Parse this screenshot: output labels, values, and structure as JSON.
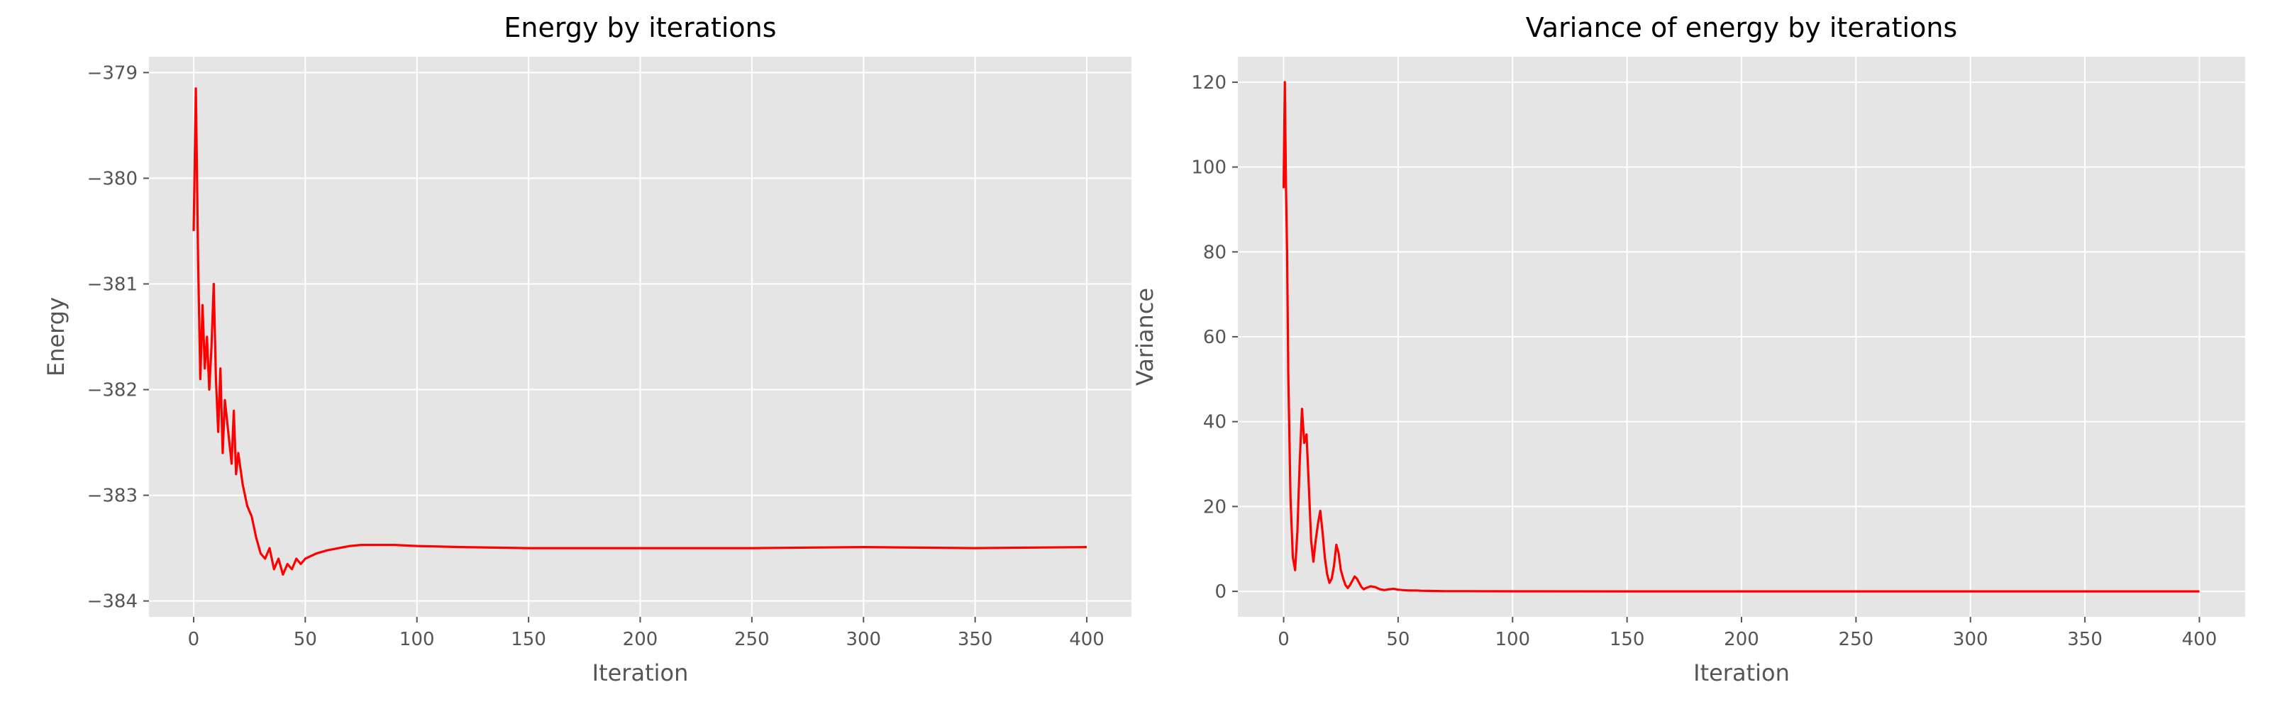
{
  "chart_data": [
    {
      "type": "line",
      "title": "Energy by iterations",
      "xlabel": "Iteration",
      "ylabel": "Energy",
      "xlim": [
        -20,
        420
      ],
      "ylim": [
        -384.15,
        -378.85
      ],
      "xticks": [
        0,
        50,
        100,
        150,
        200,
        250,
        300,
        350,
        400
      ],
      "yticks": [
        -384,
        -383,
        -382,
        -381,
        -380,
        -379
      ],
      "grid": true,
      "series_color": "#ff0000",
      "background": "#e5e5e5",
      "series": [
        {
          "x": [
            0,
            1,
            2,
            3,
            4,
            5,
            6,
            7,
            8,
            9,
            10,
            11,
            12,
            13,
            14,
            15,
            16,
            17,
            18,
            19,
            20,
            22,
            24,
            26,
            28,
            30,
            32,
            34,
            36,
            38,
            40,
            42,
            44,
            46,
            48,
            50,
            55,
            60,
            65,
            70,
            75,
            80,
            90,
            100,
            120,
            150,
            200,
            250,
            300,
            350,
            400
          ],
          "values": [
            -380.5,
            -379.15,
            -380.8,
            -381.9,
            -381.2,
            -381.8,
            -381.5,
            -382.0,
            -381.6,
            -381.0,
            -381.9,
            -382.4,
            -381.8,
            -382.6,
            -382.1,
            -382.3,
            -382.5,
            -382.7,
            -382.2,
            -382.8,
            -382.6,
            -382.9,
            -383.1,
            -383.2,
            -383.4,
            -383.55,
            -383.6,
            -383.5,
            -383.7,
            -383.6,
            -383.75,
            -383.65,
            -383.7,
            -383.6,
            -383.65,
            -383.6,
            -383.55,
            -383.52,
            -383.5,
            -383.48,
            -383.47,
            -383.47,
            -383.47,
            -383.48,
            -383.49,
            -383.5,
            -383.5,
            -383.5,
            -383.49,
            -383.5,
            -383.49
          ]
        }
      ]
    },
    {
      "type": "line",
      "title": "Variance of energy by iterations",
      "xlabel": "Iteration",
      "ylabel": "Variance",
      "xlim": [
        -20,
        420
      ],
      "ylim": [
        -6,
        126
      ],
      "xticks": [
        0,
        50,
        100,
        150,
        200,
        250,
        300,
        350,
        400
      ],
      "yticks": [
        0,
        20,
        40,
        60,
        80,
        100,
        120
      ],
      "grid": true,
      "series_color": "#ff0000",
      "background": "#e5e5e5",
      "series": [
        {
          "x": [
            0,
            0.5,
            1,
            1.5,
            2,
            3,
            4,
            5,
            6,
            7,
            8,
            9,
            10,
            11,
            12,
            13,
            14,
            15,
            16,
            17,
            18,
            19,
            20,
            21,
            22,
            23,
            24,
            25,
            26,
            27,
            28,
            29,
            30,
            31,
            32,
            33,
            34,
            35,
            36,
            38,
            40,
            42,
            44,
            46,
            48,
            50,
            52,
            55,
            58,
            60,
            65,
            70,
            80,
            100,
            150,
            200,
            250,
            300,
            350,
            400
          ],
          "values": [
            95,
            120,
            96,
            80,
            52,
            22,
            8,
            5,
            14,
            30,
            43,
            35,
            37,
            25,
            12,
            7,
            12,
            16,
            19,
            14,
            8,
            4,
            2,
            3,
            6,
            11,
            9,
            5,
            3,
            1.5,
            0.8,
            1.5,
            2.5,
            3.5,
            3,
            2,
            1,
            0.5,
            0.8,
            1.2,
            1.0,
            0.5,
            0.3,
            0.5,
            0.6,
            0.4,
            0.3,
            0.2,
            0.2,
            0.15,
            0.1,
            0.05,
            0.05,
            0.02,
            0,
            0,
            0,
            0,
            0,
            0
          ]
        }
      ]
    }
  ]
}
